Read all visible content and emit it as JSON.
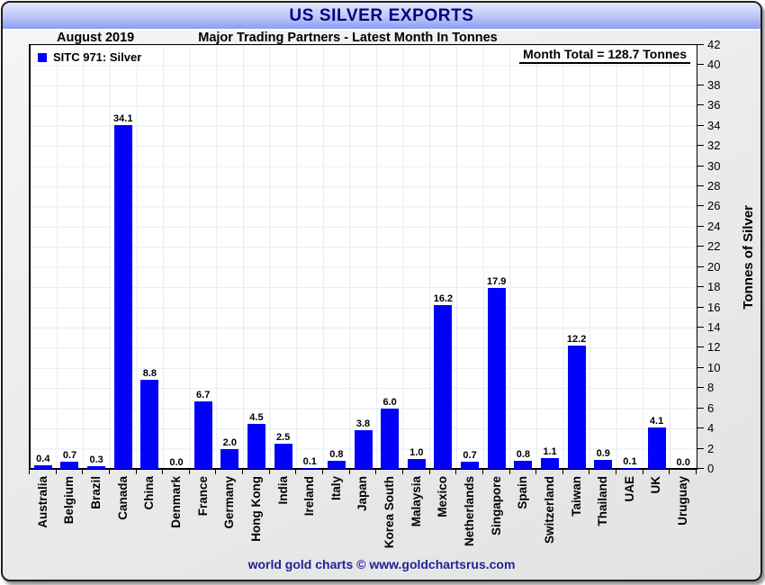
{
  "header": {
    "title": "US SILVER EXPORTS",
    "date": "August 2019",
    "subtitle": "Major Trading Partners - Latest Month In Tonnes"
  },
  "legend": {
    "label": "SITC 971: Silver"
  },
  "annotation": {
    "month_total": "Month Total = 128.7 Tonnes"
  },
  "footer": {
    "credit": "world gold charts © www.goldchartsrus.com"
  },
  "colors": {
    "bar": "#0101fa",
    "grid": "#e3ecf7",
    "title_text": "#00007f",
    "footer_text": "#22229a"
  },
  "chart_data": {
    "type": "bar",
    "title": "US SILVER EXPORTS",
    "subtitle": "Major Trading Partners - Latest Month In Tonnes",
    "period": "August 2019",
    "series_name": "SITC 971: Silver",
    "categories": [
      "Australia",
      "Belgium",
      "Brazil",
      "Canada",
      "China",
      "Denmark",
      "France",
      "Germany",
      "Hong Kong",
      "India",
      "Ireland",
      "Italy",
      "Japan",
      "Korea South",
      "Malaysia",
      "Mexico",
      "Netherlands",
      "Singapore",
      "Spain",
      "Switzerland",
      "Taiwan",
      "Thailand",
      "UAE",
      "UK",
      "Uruguay"
    ],
    "values": [
      0.4,
      0.7,
      0.3,
      34.1,
      8.8,
      0.0,
      6.7,
      2.0,
      4.5,
      2.5,
      0.1,
      0.8,
      3.8,
      6.0,
      1.0,
      16.2,
      0.7,
      17.9,
      0.8,
      1.1,
      12.2,
      0.9,
      0.1,
      4.1,
      0.0
    ],
    "value_label_decimals": 1,
    "ylabel": "Tonnes of Silver",
    "ylim": [
      0,
      42
    ],
    "ytick_step": 2,
    "month_total": 128.7,
    "grid": true,
    "legend_position": "top-left",
    "y_axis_side": "right"
  }
}
